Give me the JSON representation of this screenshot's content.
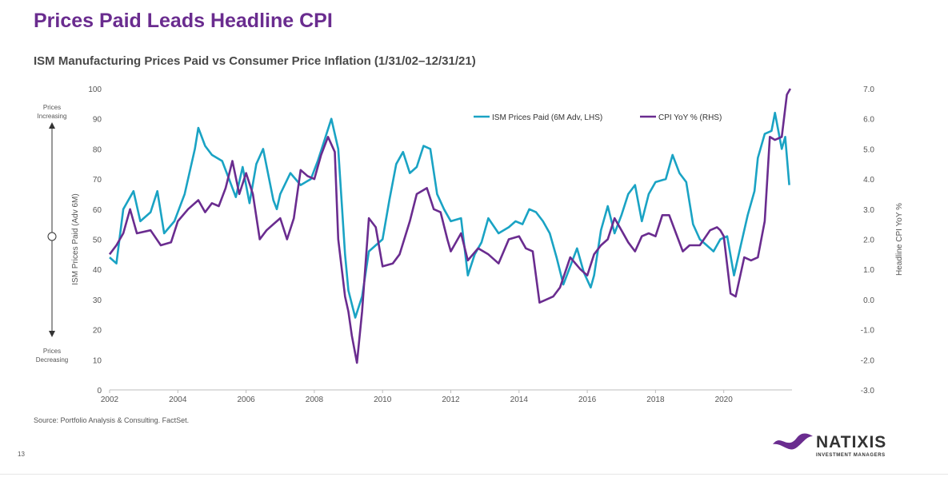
{
  "header": {
    "title": "Prices Paid Leads Headline CPI",
    "subtitle": "ISM Manufacturing Prices Paid vs Consumer Price Inflation (1/31/02–12/31/21)"
  },
  "side_labels": {
    "top_line1": "Prices",
    "top_line2": "Increasing",
    "bottom_line1": "Prices",
    "bottom_line2": "Decreasing"
  },
  "footer": {
    "source": "Source: Portfolio Analysis & Consulting. FactSet.",
    "page_number": "13",
    "logo_text": "NATIXIS",
    "logo_subtext": "INVESTMENT MANAGERS"
  },
  "colors": {
    "title": "#6a2c8f",
    "ism": "#1aa3c4",
    "cpi": "#6a2c8f"
  },
  "chart_data": {
    "type": "line",
    "title": "ISM Manufacturing Prices Paid vs Consumer Price Inflation (1/31/02–12/31/21)",
    "xlabel": "",
    "ylabel": "ISM Prices Paid (Adv 6M)",
    "y2label": "Headline CPI YoY %",
    "xlim": [
      2002,
      2022
    ],
    "x_ticks": [
      "2002",
      "2004",
      "2006",
      "2008",
      "2010",
      "2012",
      "2014",
      "2016",
      "2018",
      "2020"
    ],
    "ylim": [
      0,
      100
    ],
    "y_ticks": [
      "0",
      "10",
      "20",
      "30",
      "40",
      "50",
      "60",
      "70",
      "80",
      "90",
      "100"
    ],
    "y2lim": [
      -3,
      7
    ],
    "y2_ticks": [
      "-3.0",
      "-2.0",
      "-1.0",
      "0.0",
      "1.0",
      "2.0",
      "3.0",
      "4.0",
      "5.0",
      "6.0",
      "7.0"
    ],
    "legend": "top-right",
    "series": [
      {
        "name": "ISM Prices Paid (6M Adv, LHS)",
        "axis": "left",
        "points": [
          [
            2002.0,
            44
          ],
          [
            2002.2,
            42
          ],
          [
            2002.4,
            60
          ],
          [
            2002.7,
            66
          ],
          [
            2002.9,
            56
          ],
          [
            2003.2,
            59
          ],
          [
            2003.4,
            66
          ],
          [
            2003.6,
            52
          ],
          [
            2003.9,
            56
          ],
          [
            2004.2,
            65
          ],
          [
            2004.5,
            80
          ],
          [
            2004.6,
            87
          ],
          [
            2004.8,
            81
          ],
          [
            2005.0,
            78
          ],
          [
            2005.3,
            76
          ],
          [
            2005.5,
            70
          ],
          [
            2005.7,
            64
          ],
          [
            2005.9,
            74
          ],
          [
            2006.1,
            62
          ],
          [
            2006.3,
            75
          ],
          [
            2006.5,
            80
          ],
          [
            2006.8,
            63
          ],
          [
            2006.9,
            60
          ],
          [
            2007.0,
            65
          ],
          [
            2007.3,
            72
          ],
          [
            2007.6,
            68
          ],
          [
            2007.9,
            70
          ],
          [
            2008.1,
            76
          ],
          [
            2008.3,
            83
          ],
          [
            2008.5,
            90
          ],
          [
            2008.7,
            80
          ],
          [
            2008.9,
            45
          ],
          [
            2009.0,
            33
          ],
          [
            2009.2,
            24
          ],
          [
            2009.4,
            31
          ],
          [
            2009.6,
            46
          ],
          [
            2009.8,
            48
          ],
          [
            2010.0,
            50
          ],
          [
            2010.2,
            63
          ],
          [
            2010.4,
            75
          ],
          [
            2010.6,
            79
          ],
          [
            2010.8,
            72
          ],
          [
            2011.0,
            74
          ],
          [
            2011.2,
            81
          ],
          [
            2011.4,
            80
          ],
          [
            2011.6,
            65
          ],
          [
            2011.8,
            60
          ],
          [
            2012.0,
            56
          ],
          [
            2012.3,
            57
          ],
          [
            2012.5,
            38
          ],
          [
            2012.7,
            45
          ],
          [
            2012.9,
            49
          ],
          [
            2013.1,
            57
          ],
          [
            2013.4,
            52
          ],
          [
            2013.7,
            54
          ],
          [
            2013.9,
            56
          ],
          [
            2014.1,
            55
          ],
          [
            2014.3,
            60
          ],
          [
            2014.5,
            59
          ],
          [
            2014.7,
            56
          ],
          [
            2014.9,
            52
          ],
          [
            2015.1,
            44
          ],
          [
            2015.3,
            35
          ],
          [
            2015.5,
            41
          ],
          [
            2015.7,
            47
          ],
          [
            2015.9,
            39
          ],
          [
            2016.1,
            34
          ],
          [
            2016.2,
            38
          ],
          [
            2016.4,
            53
          ],
          [
            2016.6,
            61
          ],
          [
            2016.8,
            52
          ],
          [
            2017.0,
            58
          ],
          [
            2017.2,
            65
          ],
          [
            2017.4,
            68
          ],
          [
            2017.6,
            56
          ],
          [
            2017.8,
            65
          ],
          [
            2018.0,
            69
          ],
          [
            2018.3,
            70
          ],
          [
            2018.5,
            78
          ],
          [
            2018.7,
            72
          ],
          [
            2018.9,
            69
          ],
          [
            2019.1,
            55
          ],
          [
            2019.3,
            50
          ],
          [
            2019.5,
            48
          ],
          [
            2019.7,
            46
          ],
          [
            2019.9,
            50
          ],
          [
            2020.1,
            51
          ],
          [
            2020.3,
            38
          ],
          [
            2020.5,
            48
          ],
          [
            2020.7,
            58
          ],
          [
            2020.9,
            66
          ],
          [
            2021.0,
            77
          ],
          [
            2021.2,
            85
          ],
          [
            2021.4,
            86
          ],
          [
            2021.5,
            92
          ],
          [
            2021.7,
            80
          ],
          [
            2021.8,
            84
          ],
          [
            2021.92,
            68
          ]
        ]
      },
      {
        "name": "CPI YoY % (RHS)",
        "axis": "right",
        "points": [
          [
            2002.0,
            1.5
          ],
          [
            2002.2,
            1.8
          ],
          [
            2002.4,
            2.2
          ],
          [
            2002.6,
            3.0
          ],
          [
            2002.8,
            2.2
          ],
          [
            2003.2,
            2.3
          ],
          [
            2003.5,
            1.8
          ],
          [
            2003.8,
            1.9
          ],
          [
            2004.0,
            2.6
          ],
          [
            2004.3,
            3.0
          ],
          [
            2004.6,
            3.3
          ],
          [
            2004.8,
            2.9
          ],
          [
            2005.0,
            3.2
          ],
          [
            2005.2,
            3.1
          ],
          [
            2005.4,
            3.7
          ],
          [
            2005.6,
            4.6
          ],
          [
            2005.8,
            3.5
          ],
          [
            2006.0,
            4.2
          ],
          [
            2006.2,
            3.5
          ],
          [
            2006.4,
            2.0
          ],
          [
            2006.6,
            2.3
          ],
          [
            2006.8,
            2.5
          ],
          [
            2007.0,
            2.7
          ],
          [
            2007.2,
            2.0
          ],
          [
            2007.4,
            2.7
          ],
          [
            2007.6,
            4.3
          ],
          [
            2007.8,
            4.1
          ],
          [
            2008.0,
            4.0
          ],
          [
            2008.2,
            4.8
          ],
          [
            2008.4,
            5.4
          ],
          [
            2008.6,
            4.9
          ],
          [
            2008.7,
            2.0
          ],
          [
            2008.9,
            0.1
          ],
          [
            2009.0,
            -0.4
          ],
          [
            2009.1,
            -1.2
          ],
          [
            2009.25,
            -2.1
          ],
          [
            2009.4,
            -0.4
          ],
          [
            2009.6,
            2.7
          ],
          [
            2009.8,
            2.4
          ],
          [
            2010.0,
            1.1
          ],
          [
            2010.3,
            1.2
          ],
          [
            2010.5,
            1.5
          ],
          [
            2010.8,
            2.6
          ],
          [
            2011.0,
            3.5
          ],
          [
            2011.3,
            3.7
          ],
          [
            2011.5,
            3.0
          ],
          [
            2011.7,
            2.9
          ],
          [
            2011.9,
            2.0
          ],
          [
            2012.0,
            1.6
          ],
          [
            2012.3,
            2.2
          ],
          [
            2012.5,
            1.3
          ],
          [
            2012.8,
            1.7
          ],
          [
            2013.1,
            1.5
          ],
          [
            2013.4,
            1.2
          ],
          [
            2013.7,
            2.0
          ],
          [
            2014.0,
            2.1
          ],
          [
            2014.2,
            1.7
          ],
          [
            2014.4,
            1.6
          ],
          [
            2014.6,
            -0.1
          ],
          [
            2014.8,
            0.0
          ],
          [
            2015.0,
            0.1
          ],
          [
            2015.2,
            0.4
          ],
          [
            2015.5,
            1.4
          ],
          [
            2015.8,
            1.0
          ],
          [
            2016.0,
            0.8
          ],
          [
            2016.2,
            1.5
          ],
          [
            2016.4,
            1.8
          ],
          [
            2016.6,
            2.0
          ],
          [
            2016.8,
            2.7
          ],
          [
            2017.0,
            2.3
          ],
          [
            2017.2,
            1.9
          ],
          [
            2017.4,
            1.6
          ],
          [
            2017.6,
            2.1
          ],
          [
            2017.8,
            2.2
          ],
          [
            2018.0,
            2.1
          ],
          [
            2018.2,
            2.8
          ],
          [
            2018.4,
            2.8
          ],
          [
            2018.6,
            2.2
          ],
          [
            2018.8,
            1.6
          ],
          [
            2019.0,
            1.8
          ],
          [
            2019.3,
            1.8
          ],
          [
            2019.6,
            2.3
          ],
          [
            2019.8,
            2.4
          ],
          [
            2019.9,
            2.3
          ],
          [
            2020.0,
            2.1
          ],
          [
            2020.2,
            0.2
          ],
          [
            2020.35,
            0.1
          ],
          [
            2020.6,
            1.4
          ],
          [
            2020.8,
            1.3
          ],
          [
            2021.0,
            1.4
          ],
          [
            2021.2,
            2.6
          ],
          [
            2021.35,
            5.4
          ],
          [
            2021.5,
            5.3
          ],
          [
            2021.7,
            5.4
          ],
          [
            2021.85,
            6.8
          ],
          [
            2021.95,
            7.0
          ]
        ]
      }
    ]
  }
}
